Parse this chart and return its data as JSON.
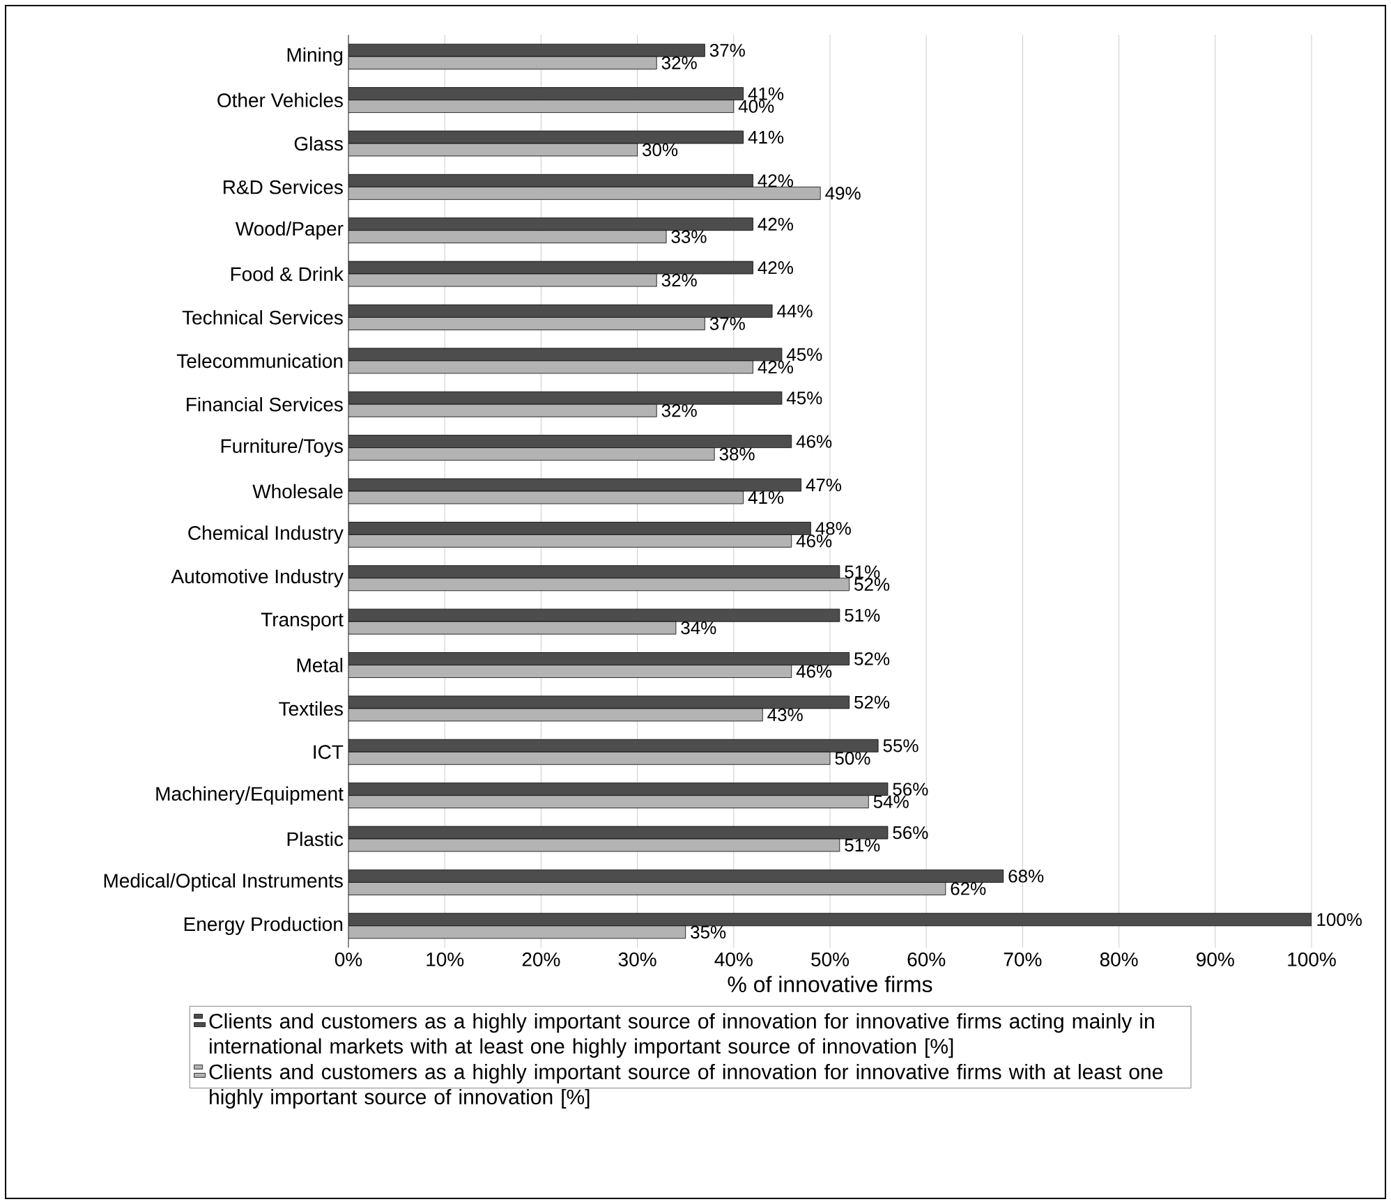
{
  "chart_data": {
    "type": "bar",
    "orientation": "horizontal",
    "xlabel": "% of innovative firms",
    "categories": [
      "Mining",
      "Other Vehicles",
      "Glass",
      "R&D Services",
      "Wood/Paper",
      "Food & Drink",
      "Technical Services",
      "Telecommunication",
      "Financial Services",
      "Furniture/Toys",
      "Wholesale",
      "Chemical Industry",
      "Automotive Industry",
      "Transport",
      "Metal",
      "Textiles",
      "ICT",
      "Machinery/Equipment",
      "Plastic",
      "Medical/Optical Instruments",
      "Energy Production"
    ],
    "series": [
      {
        "name": "Clients and customers as a highly important source of innovation for innovative firms acting mainly in international markets with at least one highly important source of innovation [%]",
        "color": "#4d4d4d",
        "values": [
          37,
          41,
          41,
          42,
          42,
          42,
          44,
          45,
          45,
          46,
          47,
          48,
          51,
          51,
          52,
          52,
          55,
          56,
          56,
          68,
          100
        ],
        "value_labels": [
          "37%",
          "41%",
          "41%",
          "42%",
          "42%",
          "42%",
          "44%",
          "45%",
          "45%",
          "46%",
          "47%",
          "48%",
          "51%",
          "51%",
          "52%",
          "52%",
          "55%",
          "56%",
          "56%",
          "68%",
          "100%"
        ]
      },
      {
        "name": "Clients and customers as a highly important source of innovation for innovative firms with at least one highly important source of innovation [%]",
        "color": "#b3b3b3",
        "values": [
          32,
          40,
          30,
          49,
          33,
          32,
          37,
          42,
          32,
          38,
          41,
          46,
          52,
          34,
          46,
          43,
          50,
          54,
          51,
          62,
          35
        ],
        "value_labels": [
          "32%",
          "40%",
          "30%",
          "49%",
          "33%",
          "32%",
          "37%",
          "42%",
          "32%",
          "38%",
          "41%",
          "46%",
          "52%",
          "34%",
          "46%",
          "43%",
          "50%",
          "54%",
          "51%",
          "62%",
          "35%"
        ]
      }
    ],
    "xlim": [
      0,
      100
    ],
    "xticks": [
      {
        "value": 0,
        "label": "0%"
      },
      {
        "value": 10,
        "label": "10%"
      },
      {
        "value": 20,
        "label": "20%"
      },
      {
        "value": 30,
        "label": "30%"
      },
      {
        "value": 40,
        "label": "40%"
      },
      {
        "value": 50,
        "label": "50%"
      },
      {
        "value": 60,
        "label": "60%"
      },
      {
        "value": 70,
        "label": "70%"
      },
      {
        "value": 80,
        "label": "80%"
      },
      {
        "value": 90,
        "label": "90%"
      },
      {
        "value": 100,
        "label": "100%"
      }
    ],
    "grid": "x",
    "legend": "bottom"
  }
}
